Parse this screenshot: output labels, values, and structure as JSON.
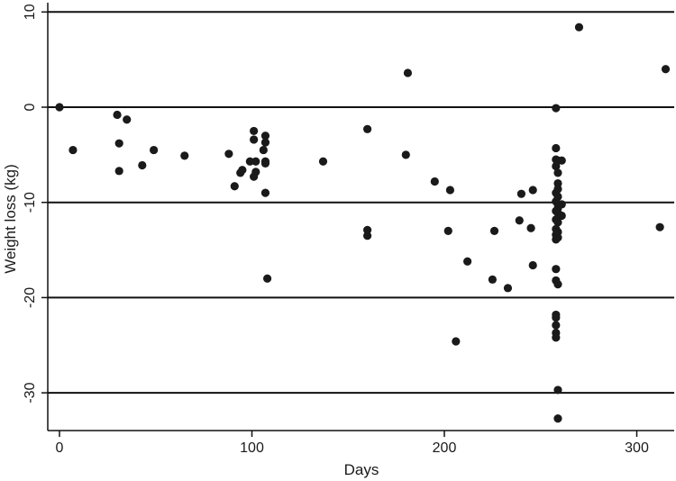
{
  "chart_data": {
    "type": "scatter",
    "title": "",
    "xlabel": "Days",
    "ylabel": "Weight loss (kg)",
    "xlim": [
      -5,
      320
    ],
    "ylim": [
      -34,
      10
    ],
    "xticks": [
      0,
      100,
      200,
      300
    ],
    "yticks": [
      10,
      0,
      -10,
      -20,
      -30
    ],
    "grid": "horizontal",
    "legend": "none",
    "marker_color": "#1a1a1a",
    "points": [
      [
        0,
        0
      ],
      [
        7,
        -4.5
      ],
      [
        30,
        -0.8
      ],
      [
        31,
        -3.8
      ],
      [
        31,
        -6.7
      ],
      [
        35,
        -1.3
      ],
      [
        43,
        -6.1
      ],
      [
        49,
        -4.5
      ],
      [
        65,
        -5.1
      ],
      [
        88,
        -4.9
      ],
      [
        91,
        -8.3
      ],
      [
        94,
        -6.9
      ],
      [
        95,
        -6.6
      ],
      [
        99,
        -5.7
      ],
      [
        101,
        -2.5
      ],
      [
        101,
        -3.4
      ],
      [
        101,
        -7.3
      ],
      [
        102,
        -6.8
      ],
      [
        102,
        -5.7
      ],
      [
        106,
        -4.5
      ],
      [
        107,
        -5.7
      ],
      [
        107,
        -3.0
      ],
      [
        107,
        -3.7
      ],
      [
        107,
        -9.0
      ],
      [
        107,
        -5.9
      ],
      [
        108,
        -18.0
      ],
      [
        137,
        -5.7
      ],
      [
        160,
        -2.3
      ],
      [
        160,
        -12.9
      ],
      [
        160,
        -13.5
      ],
      [
        180,
        -5.0
      ],
      [
        181,
        3.6
      ],
      [
        195,
        -7.8
      ],
      [
        202,
        -13.0
      ],
      [
        203,
        -8.7
      ],
      [
        206,
        -24.6
      ],
      [
        212,
        -16.2
      ],
      [
        225,
        -18.1
      ],
      [
        226,
        -13.0
      ],
      [
        233,
        -19.0
      ],
      [
        239,
        -11.9
      ],
      [
        240,
        -9.1
      ],
      [
        245,
        -12.7
      ],
      [
        246,
        -8.7
      ],
      [
        246,
        -16.6
      ],
      [
        258,
        -0.1
      ],
      [
        258,
        -4.3
      ],
      [
        258,
        -5.5
      ],
      [
        258,
        -6.2
      ],
      [
        258,
        -9.0
      ],
      [
        258,
        -9.9
      ],
      [
        258,
        -10.9
      ],
      [
        258,
        -11.8
      ],
      [
        258,
        -12.8
      ],
      [
        258,
        -13.4
      ],
      [
        258,
        -13.9
      ],
      [
        258,
        -17.0
      ],
      [
        258,
        -18.2
      ],
      [
        258,
        -21.8
      ],
      [
        258,
        -22.1
      ],
      [
        258,
        -22.9
      ],
      [
        258,
        -23.7
      ],
      [
        258,
        -24.2
      ],
      [
        259,
        -5.6
      ],
      [
        259,
        -6.9
      ],
      [
        259,
        -8.0
      ],
      [
        259,
        -8.6
      ],
      [
        259,
        -9.4
      ],
      [
        259,
        -10.2
      ],
      [
        259,
        -10.6
      ],
      [
        259,
        -11.1
      ],
      [
        259,
        -12.1
      ],
      [
        259,
        -13.1
      ],
      [
        259,
        -13.7
      ],
      [
        259,
        -18.6
      ],
      [
        259,
        -29.7
      ],
      [
        259,
        -32.7
      ],
      [
        261,
        -5.6
      ],
      [
        261,
        -10.2
      ],
      [
        261,
        -11.4
      ],
      [
        270,
        8.4
      ],
      [
        312,
        -12.6
      ],
      [
        315,
        4.0
      ]
    ]
  }
}
